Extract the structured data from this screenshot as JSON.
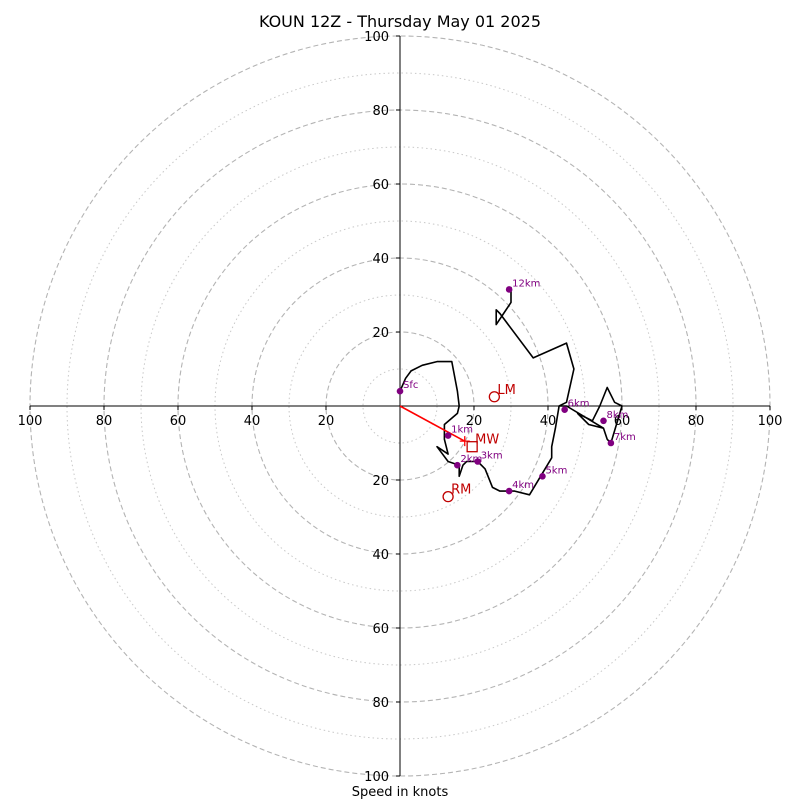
{
  "chart_data": {
    "type": "line",
    "title": "KOUN 12Z - Thursday May 01 2025",
    "xlabel": "Speed in knots",
    "ylabel": "",
    "xlim": [
      -100,
      100
    ],
    "ylim": [
      -100,
      100
    ],
    "rings_major": [
      20,
      40,
      60,
      80,
      100
    ],
    "rings_minor": [
      10,
      30,
      50,
      70,
      90
    ],
    "x_ticks": [
      {
        "v": -100,
        "label": "100"
      },
      {
        "v": -80,
        "label": "80"
      },
      {
        "v": -60,
        "label": "60"
      },
      {
        "v": -40,
        "label": "40"
      },
      {
        "v": -20,
        "label": "20"
      },
      {
        "v": 20,
        "label": "20"
      },
      {
        "v": 40,
        "label": "40"
      },
      {
        "v": 60,
        "label": "60"
      },
      {
        "v": 80,
        "label": "80"
      },
      {
        "v": 100,
        "label": "100"
      }
    ],
    "y_ticks": [
      {
        "v": 100,
        "label": "100"
      },
      {
        "v": 80,
        "label": "80"
      },
      {
        "v": 60,
        "label": "60"
      },
      {
        "v": 40,
        "label": "40"
      },
      {
        "v": 20,
        "label": "20"
      },
      {
        "v": -20,
        "label": "20"
      },
      {
        "v": -40,
        "label": "40"
      },
      {
        "v": -60,
        "label": "60"
      },
      {
        "v": -80,
        "label": "80"
      },
      {
        "v": -100,
        "label": "100"
      }
    ],
    "hodograph": {
      "color": "#000000",
      "points": [
        [
          0,
          4
        ],
        [
          1.5,
          7.5
        ],
        [
          3,
          9.5
        ],
        [
          6,
          11
        ],
        [
          10,
          12
        ],
        [
          14,
          12
        ],
        [
          15.5,
          4
        ],
        [
          16,
          0
        ],
        [
          15.5,
          -2
        ],
        [
          12,
          -5
        ],
        [
          12,
          -9
        ],
        [
          13,
          -13
        ],
        [
          10,
          -11
        ],
        [
          13,
          -15
        ],
        [
          16,
          -16
        ],
        [
          16,
          -19
        ],
        [
          17,
          -16
        ],
        [
          18,
          -15
        ],
        [
          21,
          -15
        ],
        [
          23,
          -17
        ],
        [
          25,
          -22
        ],
        [
          27,
          -23
        ],
        [
          31,
          -23
        ],
        [
          35,
          -24
        ],
        [
          38,
          -19
        ],
        [
          41,
          -14
        ],
        [
          41,
          -11
        ],
        [
          42,
          -6
        ],
        [
          43,
          0
        ],
        [
          45,
          1
        ],
        [
          47,
          10
        ],
        [
          45,
          17
        ],
        [
          36,
          13
        ],
        [
          27,
          25
        ],
        [
          26,
          26
        ],
        [
          26,
          22
        ],
        [
          28,
          25
        ],
        [
          30,
          28
        ],
        [
          30,
          32
        ],
        [
          29.5,
          31.5
        ]
      ],
      "points_tail": [
        [
          43,
          0
        ],
        [
          45,
          0
        ],
        [
          50,
          -3
        ],
        [
          55,
          -6
        ],
        [
          56,
          -9
        ],
        [
          57,
          -10
        ],
        [
          60,
          0
        ],
        [
          58,
          1
        ],
        [
          56,
          5
        ],
        [
          54,
          0
        ],
        [
          52,
          -4
        ],
        [
          50,
          -3
        ],
        [
          48,
          -2
        ],
        [
          51,
          -5
        ],
        [
          55,
          -6
        ]
      ]
    },
    "height_markers": {
      "color": "#800080",
      "items": [
        {
          "label": "Sfc",
          "x": 0,
          "y": 4
        },
        {
          "label": "1km",
          "x": 13,
          "y": -8
        },
        {
          "label": "2km",
          "x": 15.5,
          "y": -16
        },
        {
          "label": "3km",
          "x": 21,
          "y": -15
        },
        {
          "label": "4km",
          "x": 29.5,
          "y": -23
        },
        {
          "label": "5km",
          "x": 38.5,
          "y": -19
        },
        {
          "label": "6km",
          "x": 44.5,
          "y": -1
        },
        {
          "label": "8km",
          "x": 55,
          "y": -4
        },
        {
          "label": "7km",
          "x": 57,
          "y": -10
        },
        {
          "label": "12km",
          "x": 29.5,
          "y": 31.5
        }
      ]
    },
    "storm_motion": {
      "color": "#c00000",
      "items": [
        {
          "label": "LM",
          "x": 25.5,
          "y": 2.5,
          "marker": "circle"
        },
        {
          "label": "MW",
          "x": 19.5,
          "y": -11,
          "marker": "square"
        },
        {
          "label": "RM",
          "x": 13,
          "y": -24.5,
          "marker": "circle"
        }
      ],
      "shear_vector": {
        "x": 17.5,
        "y": -9.5,
        "color": "#ff0000"
      }
    }
  }
}
